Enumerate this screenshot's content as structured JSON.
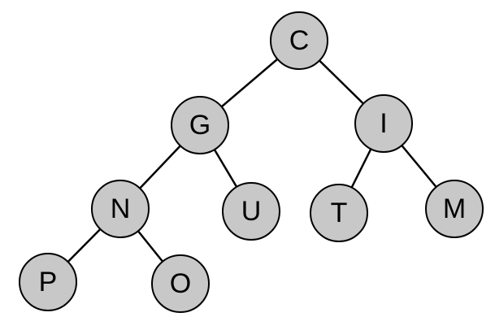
{
  "colors": {
    "node_fill": "#c8c8c8",
    "node_stroke": "#000000",
    "edge": "#000000",
    "background": "#ffffff"
  },
  "tree": {
    "nodes": [
      {
        "id": "c",
        "label": "C"
      },
      {
        "id": "g",
        "label": "G"
      },
      {
        "id": "i",
        "label": "I"
      },
      {
        "id": "n",
        "label": "N"
      },
      {
        "id": "u",
        "label": "U"
      },
      {
        "id": "t",
        "label": "T"
      },
      {
        "id": "m",
        "label": "M"
      },
      {
        "id": "p",
        "label": "P"
      },
      {
        "id": "o",
        "label": "O"
      }
    ],
    "edges": [
      {
        "from": "c",
        "to": "g"
      },
      {
        "from": "c",
        "to": "i"
      },
      {
        "from": "g",
        "to": "n"
      },
      {
        "from": "g",
        "to": "u"
      },
      {
        "from": "i",
        "to": "t"
      },
      {
        "from": "i",
        "to": "m"
      },
      {
        "from": "n",
        "to": "p"
      },
      {
        "from": "n",
        "to": "o"
      }
    ]
  }
}
